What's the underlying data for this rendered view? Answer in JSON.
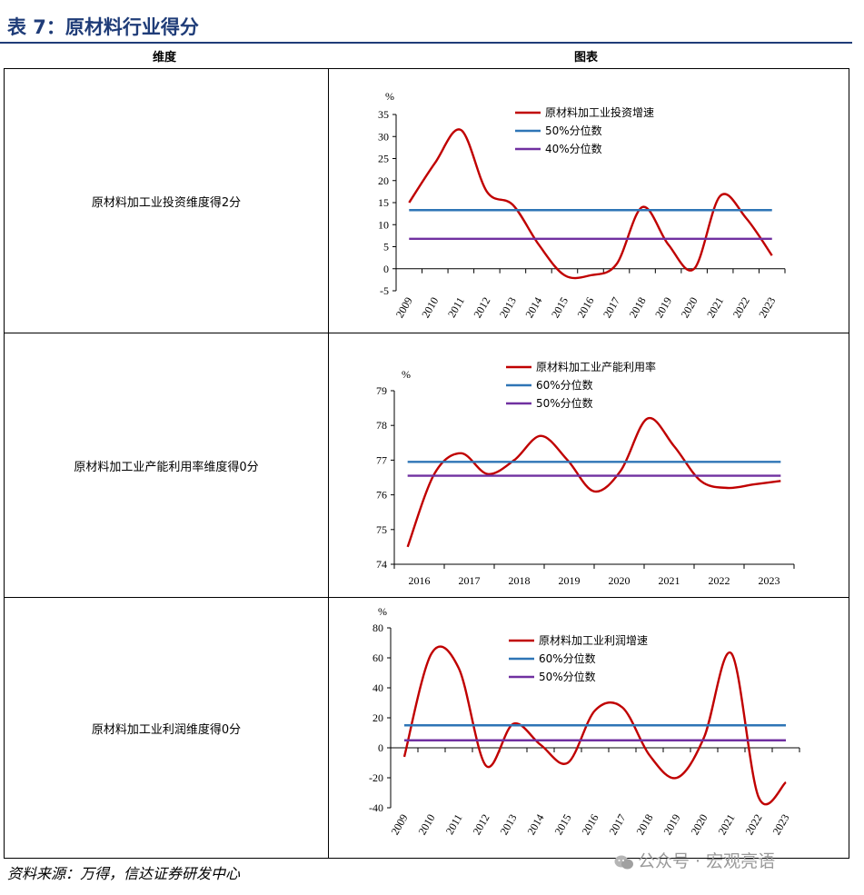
{
  "title": "表 7：原材料行业得分",
  "headers": {
    "dimension": "维度",
    "chart": "图表"
  },
  "rows": [
    {
      "label": "原材料加工业投资维度得2分"
    },
    {
      "label": "原材料加工业产能利用率维度得0分"
    },
    {
      "label": "原材料加工业利润维度得0分"
    }
  ],
  "source": "资料来源：万得，信达证券研发中心",
  "watermark": "公众号 · 宏观亮语",
  "colors": {
    "red": "#c00000",
    "blue": "#2e75b6",
    "purple": "#7030a0",
    "title": "#1f3c78"
  },
  "chart_data": [
    {
      "type": "line",
      "unit": "%",
      "x": [
        "2009",
        "2010",
        "2011",
        "2012",
        "2013",
        "2014",
        "2015",
        "2016",
        "2017",
        "2018",
        "2019",
        "2020",
        "2021",
        "2022",
        "2023"
      ],
      "ylim": [
        -5,
        35
      ],
      "yticks": [
        -5,
        0,
        5,
        10,
        15,
        20,
        25,
        30,
        35
      ],
      "rotate_x": true,
      "series": [
        {
          "name": "原材料加工业投资增速",
          "color": "#c00000",
          "values": [
            15,
            24,
            31.5,
            17.5,
            14.5,
            5.5,
            -1.5,
            -1.5,
            1,
            14,
            5.5,
            0,
            16.5,
            11.5,
            3
          ]
        },
        {
          "name": "50%分位数",
          "color": "#2e75b6",
          "values": [
            13.3,
            13.3,
            13.3,
            13.3,
            13.3,
            13.3,
            13.3,
            13.3,
            13.3,
            13.3,
            13.3,
            13.3,
            13.3,
            13.3,
            13.3
          ]
        },
        {
          "name": "40%分位数",
          "color": "#7030a0",
          "values": [
            6.8,
            6.8,
            6.8,
            6.8,
            6.8,
            6.8,
            6.8,
            6.8,
            6.8,
            6.8,
            6.8,
            6.8,
            6.8,
            6.8,
            6.8
          ]
        }
      ]
    },
    {
      "type": "line",
      "unit": "%",
      "x": [
        "2016",
        "2016.5",
        "2017",
        "2017.5",
        "2018",
        "2018.5",
        "2019",
        "2019.5",
        "2020",
        "2020.5",
        "2021",
        "2021.5",
        "2022",
        "2022.5",
        "2023"
      ],
      "xticks": [
        "2016",
        "2017",
        "2018",
        "2019",
        "2020",
        "2021",
        "2022",
        "2023"
      ],
      "ylim": [
        74,
        79
      ],
      "yticks": [
        74,
        75,
        76,
        77,
        78,
        79
      ],
      "rotate_x": false,
      "series": [
        {
          "name": "原材料加工业产能利用率",
          "color": "#c00000",
          "values": [
            74.5,
            76.6,
            77.2,
            76.6,
            77.0,
            77.7,
            77.0,
            76.1,
            76.7,
            78.2,
            77.4,
            76.4,
            76.2,
            76.3,
            76.4
          ]
        },
        {
          "name": "60%分位数",
          "color": "#2e75b6",
          "values": [
            76.95,
            76.95,
            76.95,
            76.95,
            76.95,
            76.95,
            76.95,
            76.95,
            76.95,
            76.95,
            76.95,
            76.95,
            76.95,
            76.95,
            76.95
          ]
        },
        {
          "name": "50%分位数",
          "color": "#7030a0",
          "values": [
            76.55,
            76.55,
            76.55,
            76.55,
            76.55,
            76.55,
            76.55,
            76.55,
            76.55,
            76.55,
            76.55,
            76.55,
            76.55,
            76.55,
            76.55
          ]
        }
      ]
    },
    {
      "type": "line",
      "unit": "%",
      "x": [
        "2009",
        "2010",
        "2011",
        "2012",
        "2013",
        "2014",
        "2015",
        "2016",
        "2017",
        "2018",
        "2019",
        "2020",
        "2021",
        "2022",
        "2023"
      ],
      "ylim": [
        -40,
        80
      ],
      "yticks": [
        -40,
        -20,
        0,
        20,
        40,
        60,
        80
      ],
      "rotate_x": true,
      "series": [
        {
          "name": "原材料加工业利润增速",
          "color": "#c00000",
          "values": [
            -6,
            63,
            53,
            -12,
            16,
            2,
            -10,
            25,
            27,
            -5,
            -20,
            7,
            63,
            -33,
            -23
          ]
        },
        {
          "name": "60%分位数",
          "color": "#2e75b6",
          "values": [
            15,
            15,
            15,
            15,
            15,
            15,
            15,
            15,
            15,
            15,
            15,
            15,
            15,
            15,
            15
          ]
        },
        {
          "name": "50%分位数",
          "color": "#7030a0",
          "values": [
            5,
            5,
            5,
            5,
            5,
            5,
            5,
            5,
            5,
            5,
            5,
            5,
            5,
            5,
            5
          ]
        }
      ]
    }
  ]
}
